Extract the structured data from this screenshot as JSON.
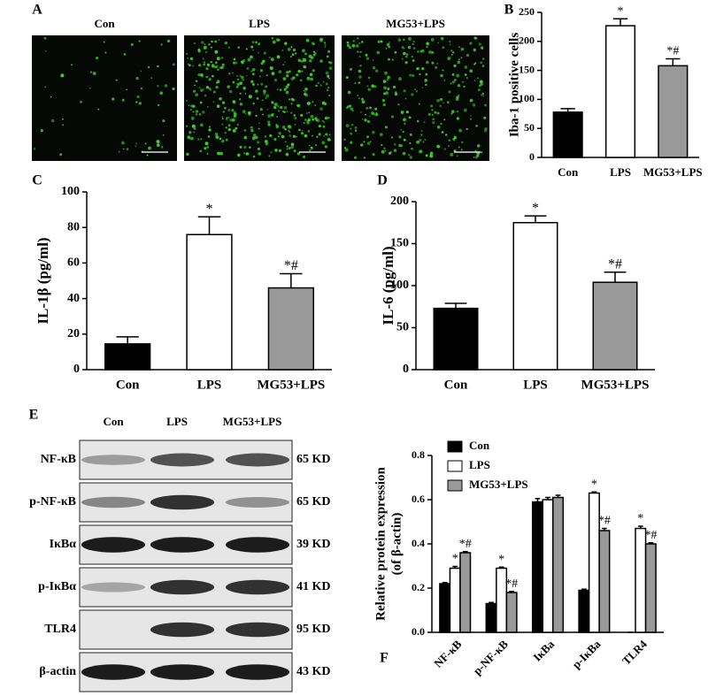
{
  "panel_a": {
    "label": "A",
    "images": [
      "Con",
      "LPS",
      "MG53+LPS"
    ]
  },
  "panel_e": {
    "label": "E",
    "columns": [
      "Con",
      "LPS",
      "MG53+LPS"
    ],
    "rows": [
      {
        "protein": "NF-κB",
        "size": "65 KD"
      },
      {
        "protein": "p-NF-κB",
        "size": "65 KD"
      },
      {
        "protein": "IκBα",
        "size": "39 KD"
      },
      {
        "protein": "p-IκBα",
        "size": "41 KD"
      },
      {
        "protein": "TLR4",
        "size": "95 KD"
      },
      {
        "protein": "β-actin",
        "size": "43 KD"
      }
    ]
  },
  "chart_data": [
    {
      "type": "bar",
      "label": "B",
      "ylabel": [
        "Iba-1 positive cells"
      ],
      "categories": [
        "Con",
        "LPS",
        "MG53+LPS"
      ],
      "values": [
        78,
        227,
        158
      ],
      "errors": [
        6,
        12,
        12
      ],
      "annotations": [
        null,
        "*",
        "*#"
      ],
      "colors": [
        "#000000",
        "#ffffff",
        "#999999"
      ],
      "ylim": [
        0,
        250
      ],
      "yticks": [
        0,
        50,
        100,
        150,
        200,
        250
      ]
    },
    {
      "type": "bar",
      "label": "C",
      "ylabel": [
        "IL-1β (pg/ml)"
      ],
      "categories": [
        "Con",
        "LPS",
        "MG53+LPS"
      ],
      "values": [
        14.5,
        76,
        46
      ],
      "errors": [
        4,
        10,
        8
      ],
      "annotations": [
        null,
        "*",
        "*#"
      ],
      "colors": [
        "#000000",
        "#ffffff",
        "#999999"
      ],
      "ylim": [
        0,
        100
      ],
      "yticks": [
        0,
        20,
        40,
        60,
        80,
        100
      ]
    },
    {
      "type": "bar",
      "label": "D",
      "ylabel": [
        "IL-6 (pg/ml)"
      ],
      "categories": [
        "Con",
        "LPS",
        "MG53+LPS"
      ],
      "values": [
        73,
        175,
        104
      ],
      "errors": [
        6,
        8,
        12
      ],
      "annotations": [
        null,
        "*",
        "*#"
      ],
      "colors": [
        "#000000",
        "#ffffff",
        "#999999"
      ],
      "ylim": [
        0,
        200
      ],
      "yticks": [
        0,
        50,
        100,
        150,
        200
      ]
    },
    {
      "type": "groupedbar",
      "label": "F",
      "ylabel": [
        "Relative protein expression",
        "(of β-actin)"
      ],
      "categories": [
        "NF-κB",
        "p-NF-κB",
        "IκBa",
        "p-IκBa",
        "TLR4"
      ],
      "series": [
        {
          "name": "Con",
          "color": "#000000",
          "values": [
            0.22,
            0.13,
            0.59,
            0.19,
            0
          ],
          "errors": [
            0.005,
            0.005,
            0.015,
            0.005,
            0
          ],
          "annotations": [
            null,
            null,
            null,
            null,
            null
          ]
        },
        {
          "name": "LPS",
          "color": "#ffffff",
          "values": [
            0.29,
            0.29,
            0.6,
            0.63,
            0.47
          ],
          "errors": [
            0.008,
            0.005,
            0.01,
            0.005,
            0.01
          ],
          "annotations": [
            "*",
            "*",
            null,
            "*",
            "*"
          ]
        },
        {
          "name": "MG53+LPS",
          "color": "#999999",
          "values": [
            0.36,
            0.18,
            0.61,
            0.46,
            0.4
          ],
          "errors": [
            0.005,
            0.005,
            0.01,
            0.01,
            0.005
          ],
          "annotations": [
            "*#",
            "*#",
            null,
            "*#",
            "*#"
          ]
        }
      ],
      "ylim": [
        0,
        0.8
      ],
      "yticks": [
        {
          "value": 0,
          "label": "0.0"
        },
        0.2,
        0.4,
        0.6,
        0.8
      ],
      "legend": "upper-left"
    }
  ]
}
